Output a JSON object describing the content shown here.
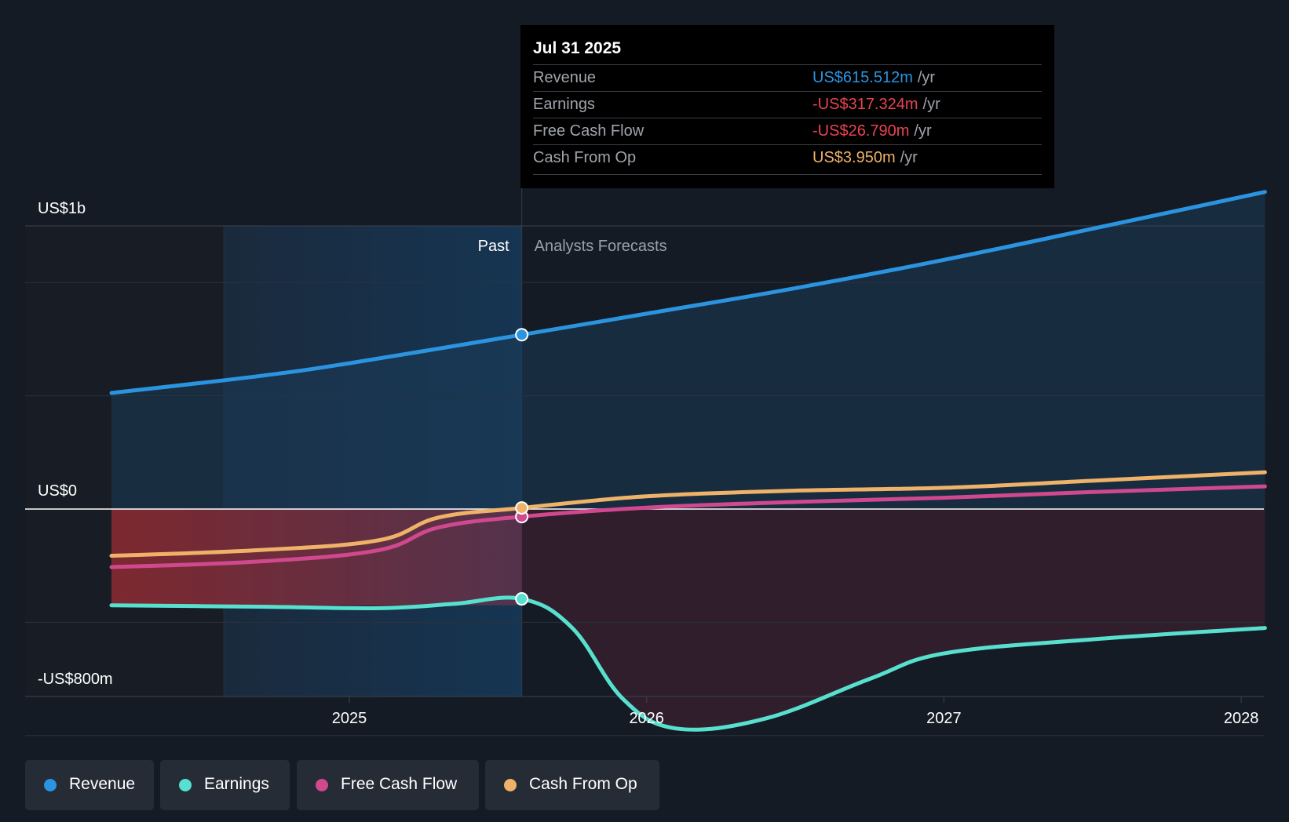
{
  "chart_data": {
    "type": "line",
    "y_axis": {
      "top_label": "US$1b",
      "zero_label": "US$0",
      "bottom_label": "-US$800m",
      "ylim": [
        -800,
        1000
      ]
    },
    "x_axis": {
      "ticks": [
        "2025",
        "2026",
        "2027",
        "2028"
      ]
    },
    "regions": {
      "past_label": "Past",
      "forecast_label": "Analysts Forecasts"
    },
    "series": [
      {
        "name": "Revenue",
        "color": "#2b94e0",
        "unit": "US$m",
        "points": [
          [
            2024.2,
            410
          ],
          [
            2024.7,
            470
          ],
          [
            2025.0,
            515
          ],
          [
            2025.58,
            615.512
          ],
          [
            2026.0,
            690
          ],
          [
            2026.5,
            780
          ],
          [
            2027.0,
            880
          ],
          [
            2027.5,
            990
          ],
          [
            2028.08,
            1120
          ]
        ]
      },
      {
        "name": "Earnings",
        "color": "#58e0cf",
        "unit": "US$m",
        "points": [
          [
            2024.2,
            -340
          ],
          [
            2024.7,
            -345
          ],
          [
            2025.1,
            -350
          ],
          [
            2025.35,
            -335
          ],
          [
            2025.58,
            -317.324
          ],
          [
            2025.75,
            -420
          ],
          [
            2025.92,
            -670
          ],
          [
            2026.1,
            -775
          ],
          [
            2026.4,
            -740
          ],
          [
            2026.75,
            -600
          ],
          [
            2027.0,
            -510
          ],
          [
            2027.5,
            -460
          ],
          [
            2028.08,
            -420
          ]
        ]
      },
      {
        "name": "Free Cash Flow",
        "color": "#d0488e",
        "unit": "US$m",
        "points": [
          [
            2024.2,
            -205
          ],
          [
            2024.7,
            -185
          ],
          [
            2025.1,
            -145
          ],
          [
            2025.3,
            -65
          ],
          [
            2025.58,
            -26.79
          ],
          [
            2026.0,
            5
          ],
          [
            2026.5,
            25
          ],
          [
            2027.0,
            40
          ],
          [
            2027.5,
            60
          ],
          [
            2028.08,
            80
          ]
        ]
      },
      {
        "name": "Cash From Op",
        "color": "#eeb268",
        "unit": "US$m",
        "points": [
          [
            2024.2,
            -165
          ],
          [
            2024.7,
            -145
          ],
          [
            2025.1,
            -110
          ],
          [
            2025.3,
            -30
          ],
          [
            2025.58,
            3.95
          ],
          [
            2026.0,
            45
          ],
          [
            2026.5,
            65
          ],
          [
            2027.0,
            75
          ],
          [
            2027.5,
            100
          ],
          [
            2028.08,
            130
          ]
        ]
      }
    ],
    "highlight_date": 2025.58
  },
  "tooltip": {
    "date": "Jul 31 2025",
    "rows": [
      {
        "label": "Revenue",
        "value": "US$615.512m",
        "unit": "/yr",
        "color": "#2b94e0"
      },
      {
        "label": "Earnings",
        "value": "-US$317.324m",
        "unit": "/yr",
        "color": "#e84451"
      },
      {
        "label": "Free Cash Flow",
        "value": "-US$26.790m",
        "unit": "/yr",
        "color": "#e84451"
      },
      {
        "label": "Cash From Op",
        "value": "US$3.950m",
        "unit": "/yr",
        "color": "#eeb268"
      }
    ]
  },
  "legend": [
    {
      "label": "Revenue",
      "color": "#2b94e0"
    },
    {
      "label": "Earnings",
      "color": "#58e0cf"
    },
    {
      "label": "Free Cash Flow",
      "color": "#d0488e"
    },
    {
      "label": "Cash From Op",
      "color": "#eeb268"
    }
  ]
}
